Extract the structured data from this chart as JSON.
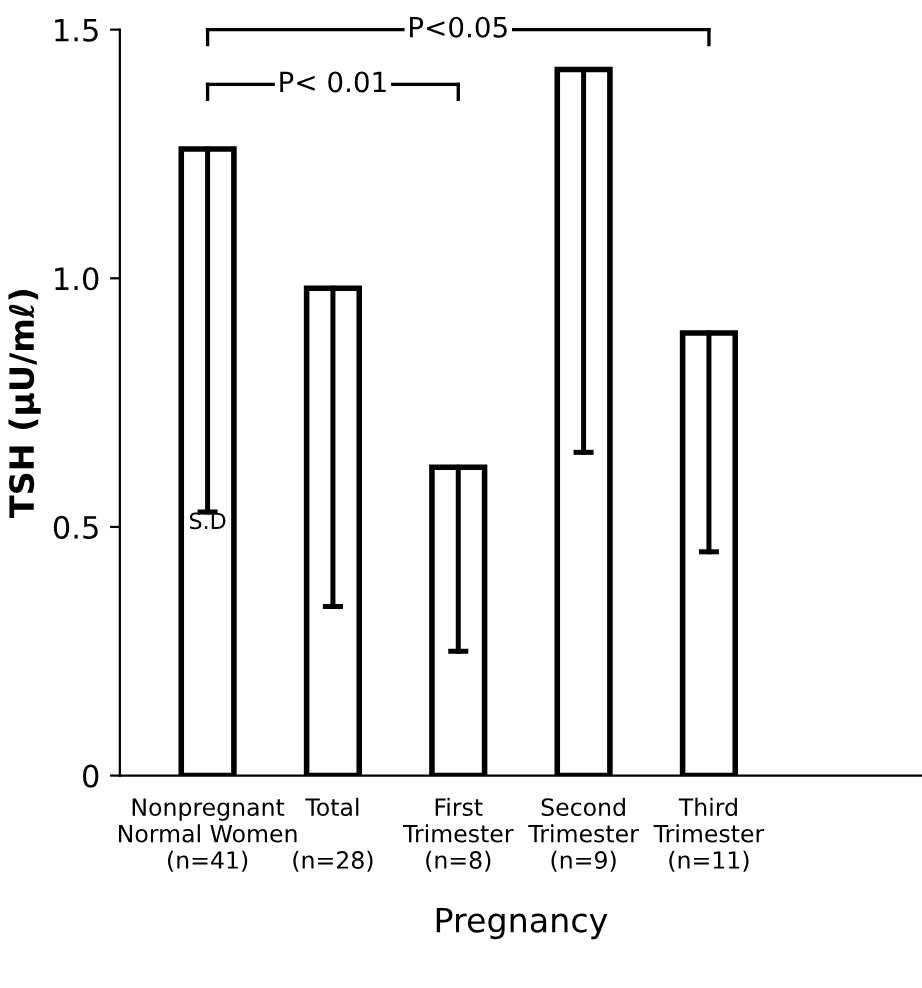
{
  "chart_data": {
    "type": "bar",
    "categories": [
      "Nonpregnant\nNormal Women\n(n=41)",
      "Total\n\n(n=28)",
      "First\nTrimester\n(n=8)",
      "Second\nTrimester\n(n=9)",
      "Third\nTrimester\n(n=11)"
    ],
    "values": [
      1.26,
      0.98,
      0.62,
      1.42,
      0.89
    ],
    "errors": [
      [
        0.53,
        1.26
      ],
      [
        0.34,
        0.98
      ],
      [
        0.25,
        0.62
      ],
      [
        0.65,
        1.42
      ],
      [
        0.45,
        0.89
      ]
    ],
    "color": "#ffffff",
    "xlabel": "Pregnancy",
    "ylabel": "TSH (μU/mℓ)",
    "ylim": [
      0,
      1.5
    ],
    "yticks": [
      0,
      0.5,
      {
        "value": 1.0,
        "label": "1.0"
      },
      1.5
    ],
    "annotations": [
      {
        "text": "S.D",
        "x": "Nonpregnant\nNormal Women\n(n=41)",
        "y": 0.53
      },
      "P<0.05",
      "P< 0.01"
    ],
    "grid": false,
    "legend": false
  }
}
